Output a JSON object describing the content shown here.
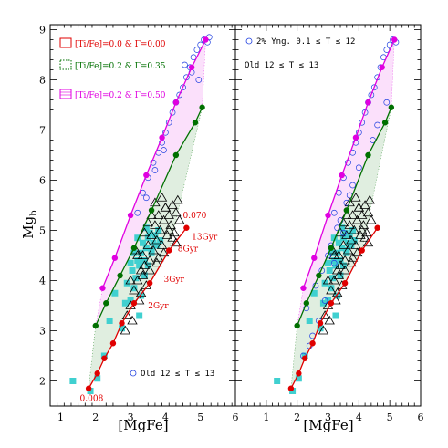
{
  "chart_data": [
    {
      "panel": "left",
      "type": "line+scatter",
      "xlabel": "[MgFe]",
      "ylabel": "Mg",
      "ylabel_sub": "b",
      "xlim": [
        0.7,
        6.0
      ],
      "ylim": [
        1.5,
        9.1
      ],
      "xticks": [
        "1",
        "2",
        "3",
        "4",
        "5",
        "6"
      ],
      "yticks": [
        "2",
        "3",
        "4",
        "5",
        "6",
        "7",
        "8",
        "9"
      ],
      "legend": [
        {
          "label": "[Ti/Fe]=0.0 & Γ=0.00",
          "color": "#e00000"
        },
        {
          "label": "[Ti/Fe]=0.2 & Γ=0.35",
          "color": "#007000"
        },
        {
          "label": "[Ti/Fe]=0.2 & Γ=0.50",
          "color": "#e000e0"
        }
      ],
      "legend_bottom": "Old 12 ≤ T ≤ 13",
      "annotations": [
        {
          "text": "0.070",
          "x": 4.5,
          "y": 5.25
        },
        {
          "text": "13Gyr",
          "x": 4.75,
          "y": 4.82
        },
        {
          "text": "8Gyr",
          "x": 4.35,
          "y": 4.58
        },
        {
          "text": "3Gyr",
          "x": 3.95,
          "y": 3.97
        },
        {
          "text": "2Gyr",
          "x": 3.5,
          "y": 3.45
        },
        {
          "text": "0.008",
          "x": 1.55,
          "y": 1.6
        }
      ],
      "series": [
        {
          "name": "[Ti/Fe]=0.0 & Γ=0.00",
          "color": "#e00000",
          "x": [
            1.8,
            2.05,
            2.25,
            2.5,
            2.75,
            3.1,
            3.55,
            4.1,
            4.6
          ],
          "y": [
            1.85,
            2.15,
            2.45,
            2.75,
            3.15,
            3.55,
            3.95,
            4.6,
            5.05
          ]
        },
        {
          "name": "[Ti/Fe]=0.2 & Γ=0.35",
          "color": "#007000",
          "x": [
            2.0,
            2.3,
            2.7,
            3.1,
            3.6,
            4.3,
            4.85,
            5.05
          ],
          "y": [
            3.1,
            3.55,
            4.1,
            4.65,
            5.4,
            6.5,
            7.15,
            7.45
          ]
        },
        {
          "name": "[Ti/Fe]=0.2 & Γ=0.50",
          "color": "#e000e0",
          "x": [
            2.2,
            2.55,
            3.0,
            3.45,
            3.9,
            4.3,
            4.75,
            5.15
          ],
          "y": [
            3.85,
            4.45,
            5.3,
            6.1,
            6.85,
            7.55,
            8.25,
            8.8
          ]
        }
      ],
      "squares": {
        "color": "#40d0d0",
        "x": [
          1.35,
          1.85,
          2.05,
          2.25,
          2.4,
          2.55,
          2.75,
          2.85,
          2.9,
          3.0,
          3.05,
          3.1,
          3.15,
          3.2,
          3.25,
          3.3,
          3.35,
          3.4,
          3.45,
          3.5,
          3.55,
          3.6,
          3.65,
          3.7,
          3.75,
          3.8,
          3.85,
          3.3,
          3.4,
          3.5,
          3.2,
          3.6,
          3.1,
          3.0,
          3.45,
          3.25
        ],
        "y": [
          2.0,
          1.8,
          2.05,
          2.5,
          3.2,
          3.75,
          3.05,
          3.55,
          3.95,
          3.6,
          4.2,
          3.85,
          4.05,
          4.4,
          4.3,
          4.55,
          4.75,
          4.4,
          4.65,
          4.85,
          4.95,
          4.6,
          4.75,
          4.9,
          4.7,
          5.0,
          4.8,
          3.7,
          4.1,
          4.3,
          4.85,
          4.55,
          4.55,
          4.35,
          5.05,
          3.3
        ]
      },
      "triangles": {
        "color": "#000000",
        "x": [
          2.85,
          2.9,
          3.0,
          3.05,
          3.1,
          3.2,
          3.25,
          3.3,
          3.35,
          3.4,
          3.45,
          3.5,
          3.55,
          3.6,
          3.65,
          3.7,
          3.75,
          3.8,
          3.85,
          3.9,
          3.95,
          4.0,
          4.05,
          4.1,
          4.15,
          4.2,
          4.25,
          4.3,
          4.35,
          3.7,
          3.9,
          4.1,
          3.6,
          3.8,
          4.0,
          4.2,
          3.5,
          3.4,
          3.3,
          4.3,
          4.4,
          3.2,
          3.0,
          3.15,
          3.35,
          3.55,
          3.75,
          3.95
        ],
        "y": [
          3.0,
          3.3,
          3.5,
          3.2,
          3.8,
          4.0,
          3.6,
          4.2,
          4.5,
          4.3,
          3.9,
          4.7,
          4.4,
          4.9,
          4.6,
          5.1,
          4.8,
          5.3,
          5.0,
          4.7,
          5.2,
          5.45,
          4.9,
          5.3,
          5.1,
          5.5,
          4.95,
          5.35,
          5.6,
          5.55,
          5.65,
          5.0,
          5.3,
          4.45,
          5.45,
          4.85,
          5.15,
          4.95,
          3.75,
          4.75,
          5.2,
          4.5,
          4.0,
          4.6,
          4.1,
          4.2,
          4.35,
          4.55
        ]
      },
      "circles": {
        "color": "#2040e0",
        "x": [
          3.2,
          3.35,
          3.5,
          3.65,
          3.8,
          3.9,
          4.0,
          4.1,
          4.2,
          4.3,
          4.4,
          4.5,
          4.6,
          4.7,
          4.8,
          4.9,
          5.0,
          5.1,
          5.2,
          5.25,
          4.55,
          4.75,
          4.95,
          3.45,
          3.7,
          3.95
        ],
        "y": [
          5.35,
          5.75,
          6.05,
          6.35,
          6.55,
          6.75,
          6.95,
          7.15,
          7.35,
          7.55,
          7.7,
          7.85,
          8.05,
          8.25,
          8.45,
          8.6,
          8.7,
          8.8,
          8.75,
          8.85,
          8.3,
          8.15,
          8.0,
          5.65,
          6.2,
          6.6
        ]
      }
    },
    {
      "panel": "right",
      "type": "line+scatter",
      "xlabel": "[MgFe]",
      "xlim": [
        0.0,
        6.0
      ],
      "ylim": [
        1.5,
        9.1
      ],
      "xticks": [
        "1",
        "2",
        "3",
        "4",
        "5",
        "6"
      ],
      "legend": [
        {
          "label": "2% Yng. 0.1 ≤ T ≤ 12",
          "color": "#000000"
        },
        {
          "label": "Old 12 ≤ T ≤ 13",
          "color": "#000000"
        }
      ],
      "series": [
        {
          "name": "[Ti/Fe]=0.0 & Γ=0.00",
          "color": "#e00000",
          "x": [
            1.8,
            2.05,
            2.25,
            2.5,
            2.75,
            3.1,
            3.55,
            4.1,
            4.6
          ],
          "y": [
            1.85,
            2.15,
            2.45,
            2.75,
            3.15,
            3.55,
            3.95,
            4.6,
            5.05
          ]
        },
        {
          "name": "[Ti/Fe]=0.2 & Γ=0.35",
          "color": "#007000",
          "x": [
            2.0,
            2.3,
            2.7,
            3.1,
            3.6,
            4.3,
            4.85,
            5.05
          ],
          "y": [
            3.1,
            3.55,
            4.1,
            4.65,
            5.4,
            6.5,
            7.15,
            7.45
          ]
        },
        {
          "name": "[Ti/Fe]=0.2 & Γ=0.50",
          "color": "#e000e0",
          "x": [
            2.2,
            2.55,
            3.0,
            3.45,
            3.9,
            4.3,
            4.75,
            5.15
          ],
          "y": [
            3.85,
            4.45,
            5.3,
            6.1,
            6.85,
            7.55,
            8.25,
            8.8
          ]
        }
      ],
      "squares": {
        "color": "#40d0d0",
        "x": [
          1.35,
          1.85,
          2.05,
          2.25,
          2.4,
          2.55,
          2.75,
          2.85,
          2.9,
          3.0,
          3.05,
          3.1,
          3.15,
          3.2,
          3.25,
          3.3,
          3.35,
          3.4,
          3.45,
          3.5,
          3.55,
          3.6,
          3.65,
          3.7,
          3.75,
          3.8,
          3.85,
          3.3,
          3.4,
          3.5,
          3.2,
          3.6,
          3.1,
          3.0,
          3.45,
          3.25
        ],
        "y": [
          2.0,
          1.8,
          2.05,
          2.5,
          3.2,
          3.75,
          3.05,
          3.55,
          3.95,
          3.6,
          4.2,
          3.85,
          4.05,
          4.4,
          4.3,
          4.55,
          4.75,
          4.4,
          4.65,
          4.85,
          4.95,
          4.6,
          4.75,
          4.9,
          4.7,
          5.0,
          4.8,
          3.7,
          4.1,
          4.3,
          4.85,
          4.55,
          4.55,
          4.35,
          5.05,
          3.3
        ]
      },
      "triangles": {
        "color": "#000000",
        "x": [
          2.85,
          2.9,
          3.0,
          3.05,
          3.1,
          3.2,
          3.25,
          3.3,
          3.35,
          3.4,
          3.45,
          3.5,
          3.55,
          3.6,
          3.65,
          3.7,
          3.75,
          3.8,
          3.85,
          3.9,
          3.95,
          4.0,
          4.05,
          4.1,
          4.15,
          4.2,
          4.25,
          4.3,
          4.35,
          3.7,
          3.9,
          4.1,
          3.6,
          3.8,
          4.0,
          4.2,
          3.5,
          3.4,
          3.3,
          4.3,
          4.4,
          3.2,
          3.0,
          3.15,
          3.35,
          3.55,
          3.75,
          3.95
        ],
        "y": [
          3.0,
          3.3,
          3.5,
          3.2,
          3.8,
          4.0,
          3.6,
          4.2,
          4.5,
          4.3,
          3.9,
          4.7,
          4.4,
          4.9,
          4.6,
          5.1,
          4.8,
          5.3,
          5.0,
          4.7,
          5.2,
          5.45,
          4.9,
          5.3,
          5.1,
          5.5,
          4.95,
          5.35,
          5.6,
          5.55,
          5.65,
          5.0,
          5.3,
          4.45,
          5.45,
          4.85,
          5.15,
          4.95,
          3.75,
          4.75,
          5.2,
          4.5,
          4.0,
          4.6,
          4.1,
          4.2,
          4.35,
          4.55
        ]
      },
      "circles": {
        "color": "#2040e0",
        "x": [
          3.2,
          3.35,
          3.5,
          3.65,
          3.8,
          3.9,
          4.0,
          4.1,
          4.2,
          4.3,
          4.4,
          4.5,
          4.6,
          4.7,
          4.8,
          4.9,
          5.0,
          5.1,
          5.2,
          2.3,
          2.6,
          2.8,
          3.0,
          3.1,
          3.3,
          3.4,
          3.6,
          3.7,
          2.5,
          2.9,
          3.2,
          3.5,
          3.8,
          4.0,
          2.2,
          2.4,
          2.7,
          4.45,
          4.6,
          4.9
        ],
        "y": [
          5.35,
          5.75,
          6.05,
          6.35,
          6.55,
          6.75,
          6.95,
          7.15,
          7.35,
          7.55,
          7.7,
          7.85,
          8.05,
          8.25,
          8.45,
          8.6,
          8.7,
          8.8,
          8.75,
          3.45,
          3.9,
          4.2,
          4.5,
          4.7,
          5.05,
          5.2,
          5.55,
          5.7,
          2.9,
          3.6,
          4.35,
          4.95,
          5.9,
          6.25,
          2.5,
          2.7,
          3.2,
          6.8,
          7.1,
          7.55
        ]
      }
    }
  ]
}
